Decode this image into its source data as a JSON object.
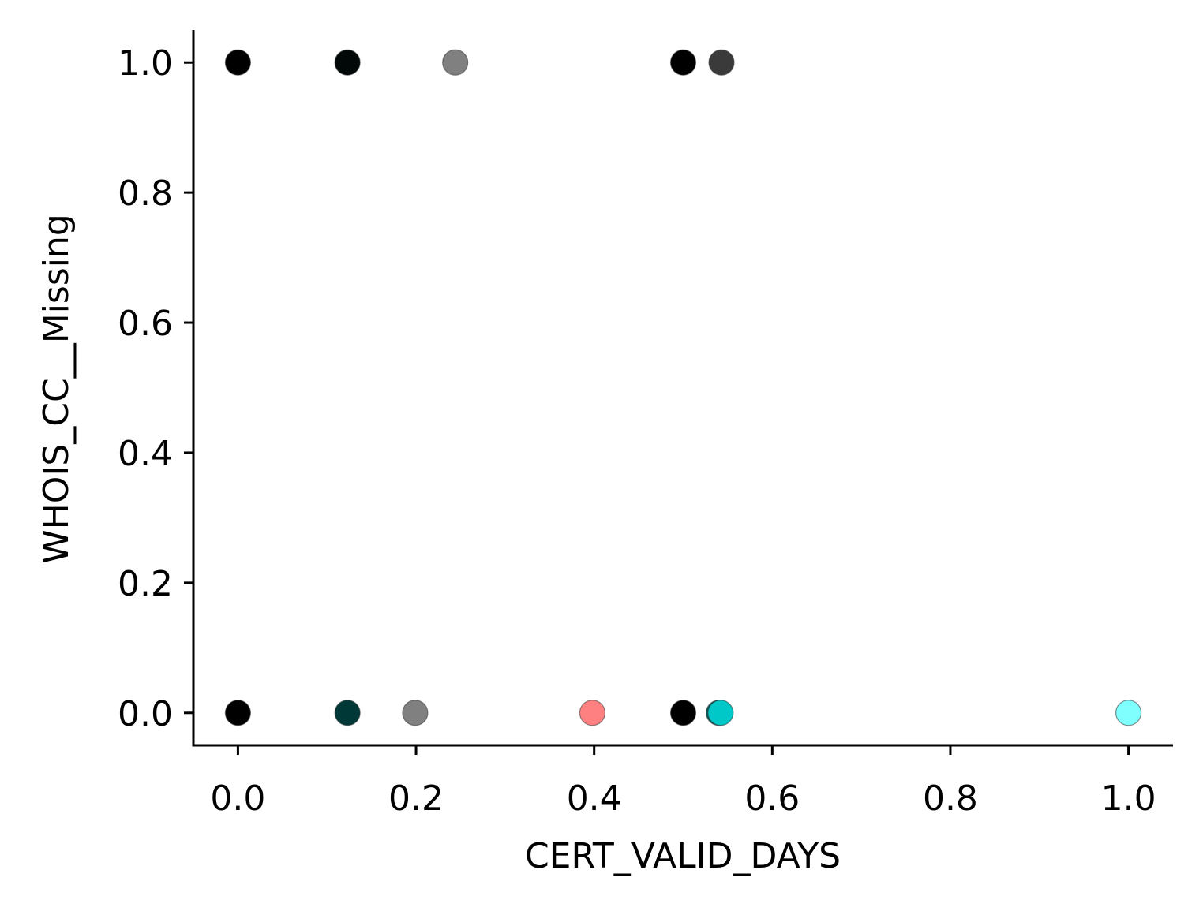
{
  "chart_data": {
    "type": "scatter",
    "title": "",
    "xlabel": "CERT_VALID_DAYS",
    "ylabel": "WHOIS_CC__Missing",
    "xlim": [
      -0.05,
      1.05
    ],
    "ylim": [
      -0.05,
      1.05
    ],
    "x_ticks": [
      0.0,
      0.2,
      0.4,
      0.6,
      0.8,
      1.0
    ],
    "x_tick_labels": [
      "0.0",
      "0.2",
      "0.4",
      "0.6",
      "0.8",
      "1.0"
    ],
    "y_ticks": [
      0.0,
      0.2,
      0.4,
      0.6,
      0.8,
      1.0
    ],
    "y_tick_labels": [
      "0.0",
      "0.2",
      "0.4",
      "0.6",
      "0.8",
      "1.0"
    ],
    "grid": false,
    "legend": "none",
    "points": [
      {
        "x": 0.0,
        "y": 1.0,
        "color": "#000000",
        "opacity": 1.0
      },
      {
        "x": 0.123,
        "y": 1.0,
        "color": "#020808",
        "opacity": 1.0
      },
      {
        "x": 0.244,
        "y": 1.0,
        "color": "#808080",
        "opacity": 1.0
      },
      {
        "x": 0.5,
        "y": 1.0,
        "color": "#000000",
        "opacity": 1.0
      },
      {
        "x": 0.543,
        "y": 1.0,
        "color": "#3a3a3a",
        "opacity": 1.0
      },
      {
        "x": 0.0,
        "y": 0.0,
        "color": "#000000",
        "opacity": 1.0
      },
      {
        "x": 0.123,
        "y": 0.0,
        "color": "#003838",
        "opacity": 1.0
      },
      {
        "x": 0.199,
        "y": 0.0,
        "color": "#808080",
        "opacity": 1.0
      },
      {
        "x": 0.398,
        "y": 0.0,
        "color": "#ff8080",
        "opacity": 1.0
      },
      {
        "x": 0.5,
        "y": 0.0,
        "color": "#000000",
        "opacity": 1.0
      },
      {
        "x": 0.54,
        "y": 0.0,
        "color": "#006060",
        "opacity": 1.0
      },
      {
        "x": 0.542,
        "y": 0.0,
        "color": "#00c8c8",
        "opacity": 1.0
      },
      {
        "x": 1.0,
        "y": 0.0,
        "color": "#80ffff",
        "opacity": 1.0
      }
    ]
  }
}
